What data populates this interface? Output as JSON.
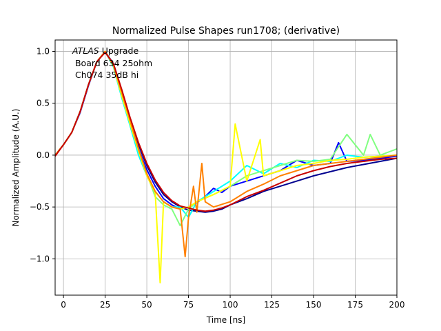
{
  "chart_data": {
    "type": "line",
    "title": "Normalized Pulse Shapes run1708; (derivative)",
    "xlabel": "Time [ns]",
    "ylabel": "Normalized Amplitude (A.U.)",
    "xlim": [
      -5,
      200
    ],
    "ylim": [
      -1.35,
      1.11
    ],
    "xticks": [
      0,
      25,
      50,
      75,
      100,
      125,
      150,
      175,
      200
    ],
    "xtick_labels": [
      "0",
      "25",
      "50",
      "75",
      "100",
      "125",
      "150",
      "175",
      "200"
    ],
    "yticks": [
      -1.0,
      -0.5,
      0.0,
      0.5,
      1.0
    ],
    "ytick_labels": [
      "−1.0",
      "−0.5",
      "0.0",
      "0.5",
      "1.0"
    ],
    "grid": true,
    "annotation": {
      "line1_italic": "ATLAS",
      "line1_rest": " Upgrade",
      "line2": " Board 634 25ohm",
      "line3": " Ch074 35dB hi"
    },
    "colormap": [
      "#00008f",
      "#0000ff",
      "#0080ff",
      "#00ffff",
      "#80ff80",
      "#ffff00",
      "#ff8000",
      "#ff0000",
      "#c80000"
    ],
    "series": [
      {
        "color": "#00008f",
        "x": [
          -5,
          0,
          5,
          10,
          15,
          20,
          25,
          30,
          35,
          40,
          45,
          50,
          55,
          60,
          65,
          70,
          75,
          80,
          85,
          90,
          95,
          100,
          110,
          120,
          130,
          140,
          150,
          160,
          170,
          180,
          190,
          200
        ],
        "y": [
          0.0,
          0.1,
          0.22,
          0.42,
          0.68,
          0.9,
          1.0,
          0.88,
          0.62,
          0.35,
          0.1,
          -0.1,
          -0.26,
          -0.38,
          -0.45,
          -0.5,
          -0.53,
          -0.54,
          -0.55,
          -0.54,
          -0.52,
          -0.48,
          -0.42,
          -0.35,
          -0.3,
          -0.25,
          -0.2,
          -0.16,
          -0.12,
          -0.09,
          -0.06,
          -0.03
        ]
      },
      {
        "color": "#0000ff",
        "x": [
          -5,
          0,
          5,
          10,
          15,
          20,
          25,
          30,
          35,
          40,
          45,
          50,
          55,
          60,
          65,
          70,
          75,
          80,
          85,
          90,
          95,
          100,
          110,
          120,
          130,
          140,
          150,
          160,
          165,
          170,
          180,
          190,
          200
        ],
        "y": [
          0.0,
          0.1,
          0.22,
          0.41,
          0.67,
          0.9,
          1.0,
          0.86,
          0.58,
          0.3,
          0.06,
          -0.14,
          -0.3,
          -0.42,
          -0.48,
          -0.52,
          -0.5,
          -0.46,
          -0.4,
          -0.32,
          -0.36,
          -0.3,
          -0.25,
          -0.2,
          -0.15,
          -0.05,
          -0.1,
          -0.08,
          0.12,
          -0.06,
          -0.05,
          -0.03,
          -0.01
        ]
      },
      {
        "color": "#00ffff",
        "x": [
          -5,
          0,
          5,
          10,
          15,
          20,
          25,
          30,
          35,
          40,
          45,
          50,
          55,
          60,
          65,
          70,
          75,
          80,
          90,
          100,
          110,
          120,
          130,
          140,
          150,
          160,
          170,
          180,
          190,
          200
        ],
        "y": [
          0.0,
          0.1,
          0.22,
          0.42,
          0.68,
          0.9,
          1.0,
          0.85,
          0.55,
          0.28,
          0.0,
          -0.2,
          -0.35,
          -0.45,
          -0.5,
          -0.5,
          -0.6,
          -0.45,
          -0.35,
          -0.25,
          -0.1,
          -0.18,
          -0.08,
          -0.12,
          -0.05,
          -0.06,
          0.0,
          -0.02,
          -0.01,
          0.0
        ]
      },
      {
        "color": "#80ff80",
        "x": [
          -5,
          0,
          5,
          10,
          15,
          20,
          25,
          30,
          35,
          40,
          45,
          50,
          55,
          60,
          65,
          70,
          75,
          80,
          90,
          100,
          110,
          120,
          130,
          140,
          150,
          160,
          170,
          180,
          184,
          190,
          200
        ],
        "y": [
          0.0,
          0.1,
          0.22,
          0.42,
          0.68,
          0.9,
          1.0,
          0.87,
          0.6,
          0.32,
          0.05,
          -0.18,
          -0.4,
          -0.48,
          -0.52,
          -0.68,
          -0.52,
          -0.45,
          -0.38,
          -0.3,
          -0.2,
          -0.15,
          -0.1,
          -0.05,
          -0.06,
          -0.04,
          0.2,
          0.0,
          0.2,
          0.0,
          0.06
        ]
      },
      {
        "color": "#ffff00",
        "x": [
          -5,
          0,
          5,
          10,
          15,
          20,
          25,
          30,
          35,
          40,
          45,
          50,
          55,
          58,
          60,
          65,
          70,
          75,
          80,
          90,
          100,
          103,
          110,
          118,
          120,
          130,
          140,
          150,
          160,
          170,
          180,
          190,
          200
        ],
        "y": [
          0.0,
          0.1,
          0.22,
          0.42,
          0.68,
          0.9,
          1.0,
          0.86,
          0.57,
          0.3,
          0.04,
          -0.2,
          -0.36,
          -1.23,
          -0.45,
          -0.5,
          -0.52,
          -0.5,
          -0.45,
          -0.38,
          -0.3,
          0.3,
          -0.25,
          0.15,
          -0.2,
          -0.15,
          -0.1,
          -0.08,
          -0.05,
          -0.04,
          -0.02,
          -0.01,
          0.0
        ]
      },
      {
        "color": "#ff8000",
        "x": [
          -5,
          0,
          5,
          10,
          15,
          20,
          25,
          30,
          35,
          40,
          45,
          50,
          55,
          60,
          65,
          70,
          73,
          75,
          78,
          80,
          83,
          85,
          90,
          100,
          110,
          120,
          130,
          140,
          150,
          160,
          170,
          180,
          190,
          200
        ],
        "y": [
          0.0,
          0.1,
          0.22,
          0.42,
          0.68,
          0.9,
          1.0,
          0.87,
          0.6,
          0.33,
          0.06,
          -0.18,
          -0.35,
          -0.45,
          -0.5,
          -0.52,
          -0.98,
          -0.6,
          -0.3,
          -0.55,
          -0.08,
          -0.45,
          -0.5,
          -0.45,
          -0.35,
          -0.28,
          -0.2,
          -0.15,
          -0.1,
          -0.08,
          -0.06,
          -0.04,
          -0.02,
          0.0
        ]
      },
      {
        "color": "#c80000",
        "x": [
          -5,
          0,
          5,
          10,
          15,
          20,
          25,
          30,
          35,
          40,
          45,
          50,
          55,
          60,
          65,
          70,
          75,
          80,
          85,
          90,
          95,
          100,
          105,
          110,
          120,
          130,
          140,
          150,
          160,
          170,
          180,
          190,
          200
        ],
        "y": [
          -0.01,
          0.1,
          0.22,
          0.42,
          0.68,
          0.9,
          0.99,
          0.88,
          0.63,
          0.36,
          0.12,
          -0.08,
          -0.24,
          -0.36,
          -0.44,
          -0.49,
          -0.51,
          -0.53,
          -0.54,
          -0.53,
          -0.51,
          -0.48,
          -0.44,
          -0.4,
          -0.34,
          -0.27,
          -0.2,
          -0.15,
          -0.11,
          -0.08,
          -0.06,
          -0.04,
          -0.03
        ]
      }
    ]
  }
}
